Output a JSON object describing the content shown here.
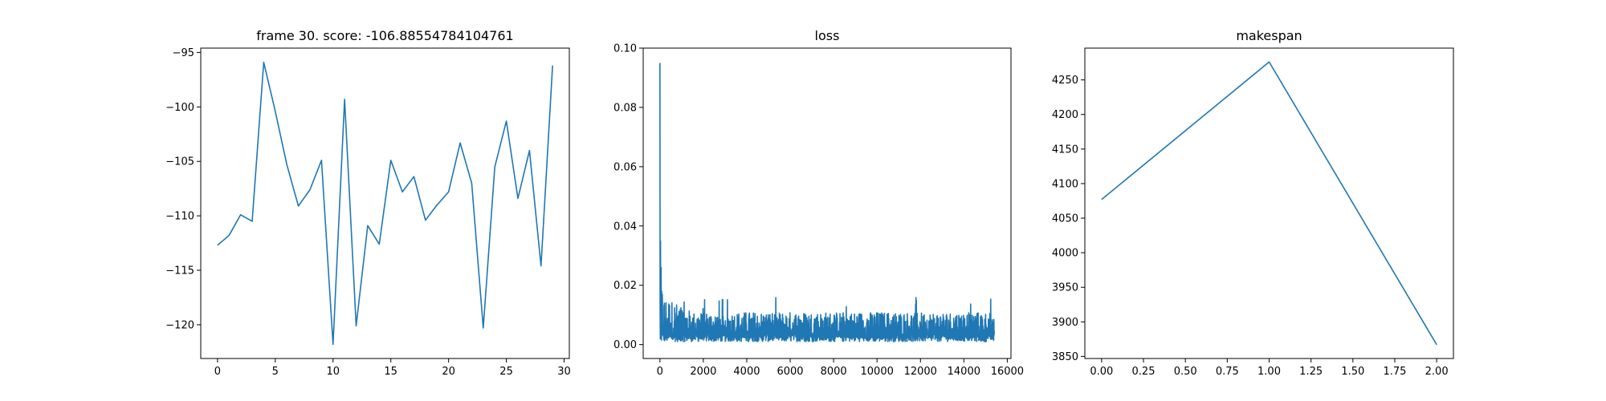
{
  "figure": {
    "background": "#ffffff",
    "line_color": "#1f77b4"
  },
  "chart_data": [
    {
      "type": "line",
      "title": "frame 30. score: -106.88554784104761",
      "xlabel": "",
      "ylabel": "",
      "xlim": [
        -1.45,
        30.45
      ],
      "ylim": [
        -123.1,
        -94.6
      ],
      "xticks": [
        0,
        5,
        10,
        15,
        20,
        25,
        30
      ],
      "xtick_labels": [
        "0",
        "5",
        "10",
        "15",
        "20",
        "25",
        "30"
      ],
      "yticks": [
        -120,
        -115,
        -110,
        -105,
        -100,
        -95
      ],
      "ytick_labels": [
        "−120",
        "−115",
        "−110",
        "−105",
        "−100",
        "−95"
      ],
      "series": [
        {
          "x": [
            0,
            1,
            2,
            3,
            4,
            5,
            6,
            7,
            8,
            9,
            10,
            11,
            12,
            13,
            14,
            15,
            16,
            17,
            18,
            19,
            20,
            21,
            22,
            23,
            24,
            25,
            26,
            27,
            28,
            29
          ],
          "y": [
            -112.7,
            -111.8,
            -109.9,
            -110.5,
            -95.9,
            -100.4,
            -105.3,
            -109.1,
            -107.6,
            -104.9,
            -121.8,
            -99.3,
            -120.1,
            -110.9,
            -112.6,
            -104.9,
            -107.8,
            -106.4,
            -110.4,
            -109.0,
            -107.8,
            -103.3,
            -107.0,
            -120.3,
            -105.5,
            -101.3,
            -108.4,
            -104.0,
            -114.6,
            -96.2
          ]
        }
      ]
    },
    {
      "type": "line",
      "title": "loss",
      "xlabel": "",
      "ylabel": "",
      "xlim": [
        -770,
        16170
      ],
      "ylim": [
        -0.0047,
        0.1
      ],
      "xticks": [
        0,
        2000,
        4000,
        6000,
        8000,
        10000,
        12000,
        14000,
        16000
      ],
      "xtick_labels": [
        "0",
        "2000",
        "4000",
        "6000",
        "8000",
        "10000",
        "12000",
        "14000",
        "16000"
      ],
      "yticks": [
        0.0,
        0.02,
        0.04,
        0.06,
        0.08,
        0.1
      ],
      "ytick_labels": [
        "0.00",
        "0.02",
        "0.04",
        "0.06",
        "0.08",
        "0.10"
      ],
      "series": [
        {
          "x_range": [
            0,
            15400
          ],
          "y_initial_spike": 0.095,
          "y_early_spikes": [
            0.035,
            0.026,
            0.018,
            0.017
          ],
          "y_band_floor": 0.001,
          "y_band_ceiling_typical": 0.012,
          "y_band_ceiling_max": 0.016,
          "approx_points": 1700
        }
      ]
    },
    {
      "type": "line",
      "title": "makespan",
      "xlabel": "",
      "ylabel": "",
      "xlim": [
        -0.1,
        2.1
      ],
      "ylim": [
        3847,
        4296
      ],
      "xticks": [
        0.0,
        0.25,
        0.5,
        0.75,
        1.0,
        1.25,
        1.5,
        1.75,
        2.0
      ],
      "xtick_labels": [
        "0.00",
        "0.25",
        "0.50",
        "0.75",
        "1.00",
        "1.25",
        "1.50",
        "1.75",
        "2.00"
      ],
      "yticks": [
        3850,
        3900,
        3950,
        4000,
        4050,
        4100,
        4150,
        4200,
        4250
      ],
      "ytick_labels": [
        "3850",
        "3900",
        "3950",
        "4000",
        "4050",
        "4100",
        "4150",
        "4200",
        "4250"
      ],
      "series": [
        {
          "x": [
            0,
            1,
            2
          ],
          "y": [
            4077,
            4276,
            3867
          ]
        }
      ]
    }
  ]
}
